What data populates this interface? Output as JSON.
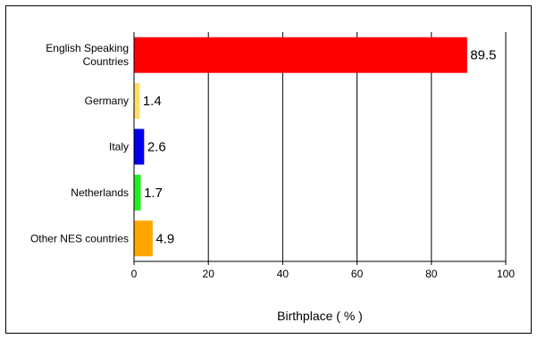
{
  "chart_data": {
    "type": "bar",
    "orientation": "horizontal",
    "categories": [
      [
        "English Speaking",
        "Countries"
      ],
      [
        "Germany"
      ],
      [
        "Italy"
      ],
      [
        "Netherlands"
      ],
      [
        "Other NES countries"
      ]
    ],
    "values": [
      89.5,
      1.4,
      2.6,
      1.7,
      4.9
    ],
    "value_labels": [
      "89.5",
      "1.4",
      "2.6",
      "1.7",
      "4.9"
    ],
    "colors": [
      "#ff0000",
      "#ffdd66",
      "#0000ee",
      "#22ee22",
      "#ffa500"
    ],
    "xlabel": "Birthplace ( % )",
    "xlim": [
      0,
      100
    ],
    "xticks": [
      0,
      20,
      40,
      60,
      80,
      100
    ],
    "grid": "vertical",
    "legend": "none"
  }
}
